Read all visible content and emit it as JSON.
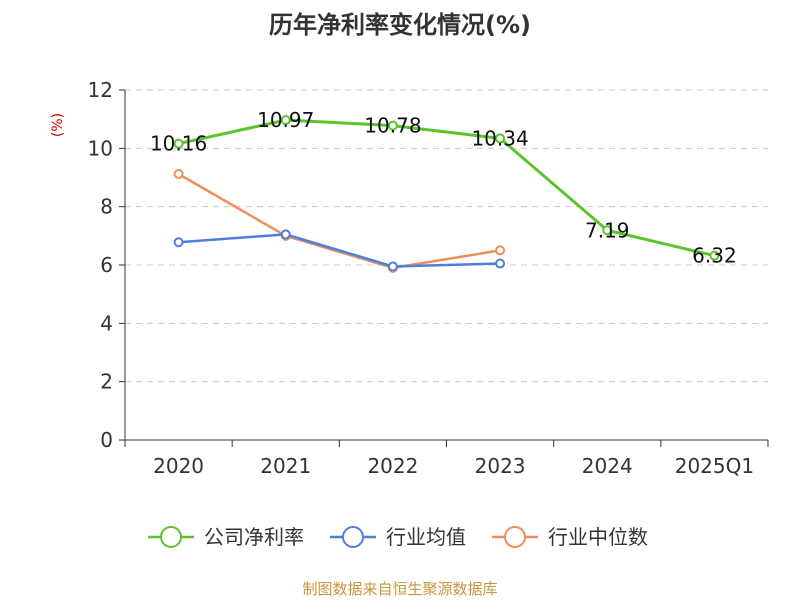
{
  "chart_data": {
    "type": "line",
    "title": "历年净利率变化情况(%)",
    "ylabel": "(%)",
    "xlabel": "",
    "categories": [
      "2020",
      "2021",
      "2022",
      "2023",
      "2024",
      "2025Q1"
    ],
    "ylim": [
      0,
      12
    ],
    "yticks": [
      0,
      2,
      4,
      6,
      8,
      10,
      12
    ],
    "grid": true,
    "legend_position": "bottom",
    "series": [
      {
        "name": "公司净利率",
        "color": "#5cc32c",
        "values": [
          10.16,
          10.97,
          10.78,
          10.34,
          7.19,
          6.32
        ],
        "labels": [
          "10.16",
          "10.97",
          "10.78",
          "10.34",
          "7.19",
          "6.32"
        ],
        "show_labels": true
      },
      {
        "name": "行业均值",
        "color": "#4f7fdc",
        "values": [
          6.78,
          7.05,
          5.95,
          6.05,
          null,
          null
        ],
        "show_labels": false
      },
      {
        "name": "行业中位数",
        "color": "#f28e5a",
        "values": [
          9.12,
          7.0,
          5.9,
          6.5,
          null,
          null
        ],
        "show_labels": false
      }
    ]
  },
  "source": "制图数据来自恒生聚源数据库"
}
